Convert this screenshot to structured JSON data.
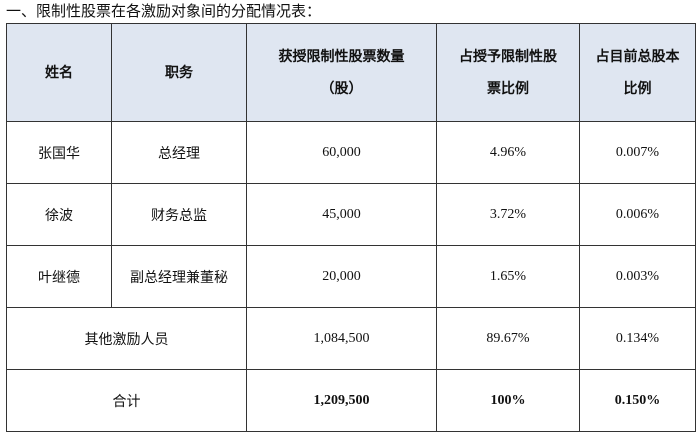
{
  "heading": "一、限制性股票在各激励对象间的分配情况表：",
  "columns": {
    "name": "姓名",
    "position": "职务",
    "shares_line1": "获授限制性股票数量",
    "shares_line2": "（股）",
    "grant_ratio_line1": "占授予限制性股",
    "grant_ratio_line2": "票比例",
    "capital_ratio_line1": "占目前总股本",
    "capital_ratio_line2": "比例"
  },
  "rows": [
    {
      "name": "张国华",
      "position": "总经理",
      "shares": "60,000",
      "grant_ratio": "4.96%",
      "capital_ratio": "0.007%"
    },
    {
      "name": "徐波",
      "position": "财务总监",
      "shares": "45,000",
      "grant_ratio": "3.72%",
      "capital_ratio": "0.006%"
    },
    {
      "name": "叶继德",
      "position": "副总经理兼董秘",
      "shares": "20,000",
      "grant_ratio": "1.65%",
      "capital_ratio": "0.003%"
    }
  ],
  "others": {
    "label": "其他激励人员",
    "shares": "1,084,500",
    "grant_ratio": "89.67%",
    "capital_ratio": "0.134%"
  },
  "total": {
    "label": "合计",
    "shares": "1,209,500",
    "grant_ratio": "100%",
    "capital_ratio": "0.150%"
  }
}
